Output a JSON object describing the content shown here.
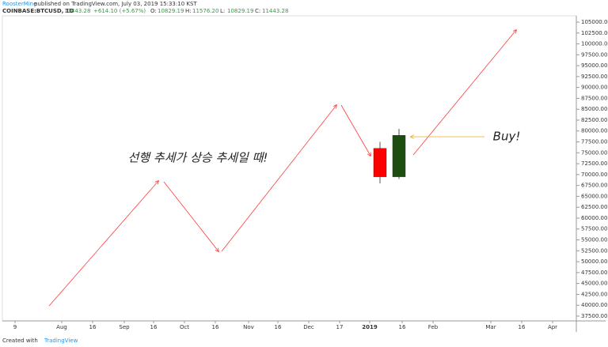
{
  "header": {
    "author": "RoosterMine",
    "published": "published on TradingView.com, July 03, 2019 15:33:10 KST",
    "symbol": "COINBASE:BTCUSD, 1D",
    "last": "11443.28",
    "change": "+614.10 (+5.67%)",
    "ohlc": [
      {
        "label": "O:",
        "value": "10829.19"
      },
      {
        "label": "H:",
        "value": "11576.20"
      },
      {
        "label": "L:",
        "value": "10829.19"
      },
      {
        "label": "C:",
        "value": "11443.28"
      }
    ]
  },
  "chart_data": {
    "type": "candlestick",
    "x_labels": [
      "9",
      "Aug",
      "16",
      "Sep",
      "16",
      "Oct",
      "16",
      "Nov",
      "16",
      "Dec",
      "17",
      "2019",
      "16",
      "Feb",
      "Mar",
      "16",
      "Apr"
    ],
    "series": [
      {
        "name": "bearish",
        "color": "#ff0000",
        "open": 76000,
        "high": 77500,
        "low": 68000,
        "close": 69500
      },
      {
        "name": "bullish",
        "color": "#1e4d12",
        "open": 69500,
        "high": 80500,
        "low": 69000,
        "close": 79000
      }
    ],
    "ylim": [
      36400,
      106450
    ],
    "yticks": [
      {
        "value": 37500,
        "label": "37500.00"
      },
      {
        "value": 40000,
        "label": "40000.00"
      },
      {
        "value": 42500,
        "label": "42500.00"
      },
      {
        "value": 45000,
        "label": "45000.00"
      },
      {
        "value": 47500,
        "label": "47500.00"
      },
      {
        "value": 50000,
        "label": "50000.00"
      },
      {
        "value": 52500,
        "label": "52500.00"
      },
      {
        "value": 55000,
        "label": "55000.00"
      },
      {
        "value": 57500,
        "label": "57500.00"
      },
      {
        "value": 60000,
        "label": "60000.00"
      },
      {
        "value": 62500,
        "label": "62500.00"
      },
      {
        "value": 65000,
        "label": "65000.00"
      },
      {
        "value": 67500,
        "label": "67500.00"
      },
      {
        "value": 70000,
        "label": "70000.00"
      },
      {
        "value": 72500,
        "label": "72500.00"
      },
      {
        "value": 75000,
        "label": "75000.00"
      },
      {
        "value": 77500,
        "label": "77500.00"
      },
      {
        "value": 80000,
        "label": "80000.00"
      },
      {
        "value": 82500,
        "label": "82500.00"
      },
      {
        "value": 85000,
        "label": "85000.00"
      },
      {
        "value": 87500,
        "label": "87500.00"
      },
      {
        "value": 90000,
        "label": "90000.00"
      },
      {
        "value": 92500,
        "label": "92500.00"
      },
      {
        "value": 95000,
        "label": "95000.00"
      },
      {
        "value": 97500,
        "label": "97500.00"
      },
      {
        "value": 100000,
        "label": "100000.00"
      },
      {
        "value": 102500,
        "label": "102500.00"
      },
      {
        "value": 105000,
        "label": "105000.00"
      }
    ],
    "annotations": [
      "선행 추세가 상승 추세일 때!",
      "Buy!"
    ]
  },
  "footer": {
    "created": "Created with",
    "brand": "TradingView"
  }
}
